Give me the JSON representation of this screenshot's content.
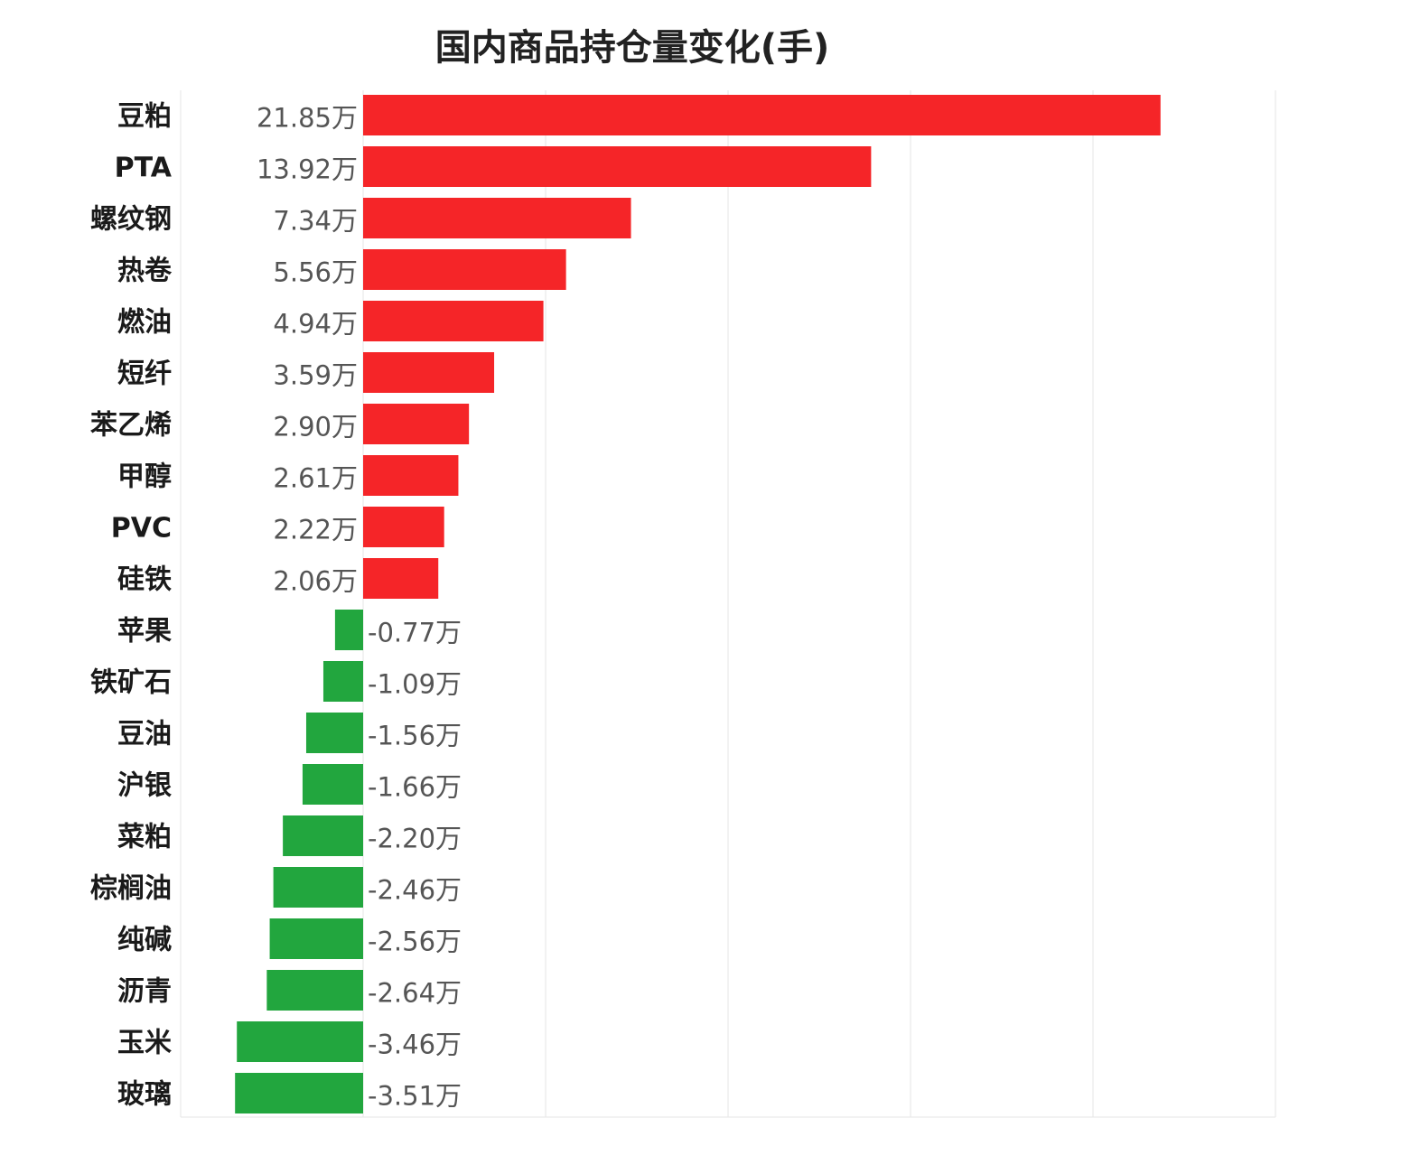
{
  "chart_data": {
    "type": "bar",
    "orientation": "horizontal",
    "title": "国内商品持仓量变化(手)",
    "xlabel": "",
    "ylabel": "",
    "unit_suffix": "万",
    "grid": true,
    "xlim": [
      -5,
      25
    ],
    "categories": [
      "豆粕",
      "PTA",
      "螺纹钢",
      "热卷",
      "燃油",
      "短纤",
      "苯乙烯",
      "甲醇",
      "PVC",
      "硅铁",
      "苹果",
      "铁矿石",
      "豆油",
      "沪银",
      "菜粕",
      "棕榈油",
      "纯碱",
      "沥青",
      "玉米",
      "玻璃"
    ],
    "values": [
      21.85,
      13.92,
      7.34,
      5.56,
      4.94,
      3.59,
      2.9,
      2.61,
      2.22,
      2.06,
      -0.77,
      -1.09,
      -1.56,
      -1.66,
      -2.2,
      -2.46,
      -2.56,
      -2.64,
      -3.46,
      -3.51
    ],
    "value_labels": [
      "21.85万",
      "13.92万",
      "7.34万",
      "5.56万",
      "4.94万",
      "3.59万",
      "2.90万",
      "2.61万",
      "2.22万",
      "2.06万",
      "-0.77万",
      "-1.09万",
      "-1.56万",
      "-1.66万",
      "-2.20万",
      "-2.46万",
      "-2.56万",
      "-2.64万",
      "-3.46万",
      "-3.51万"
    ],
    "colors": {
      "positive": "#f52528",
      "negative": "#22a63e",
      "grid": "#e6e6e6"
    }
  }
}
